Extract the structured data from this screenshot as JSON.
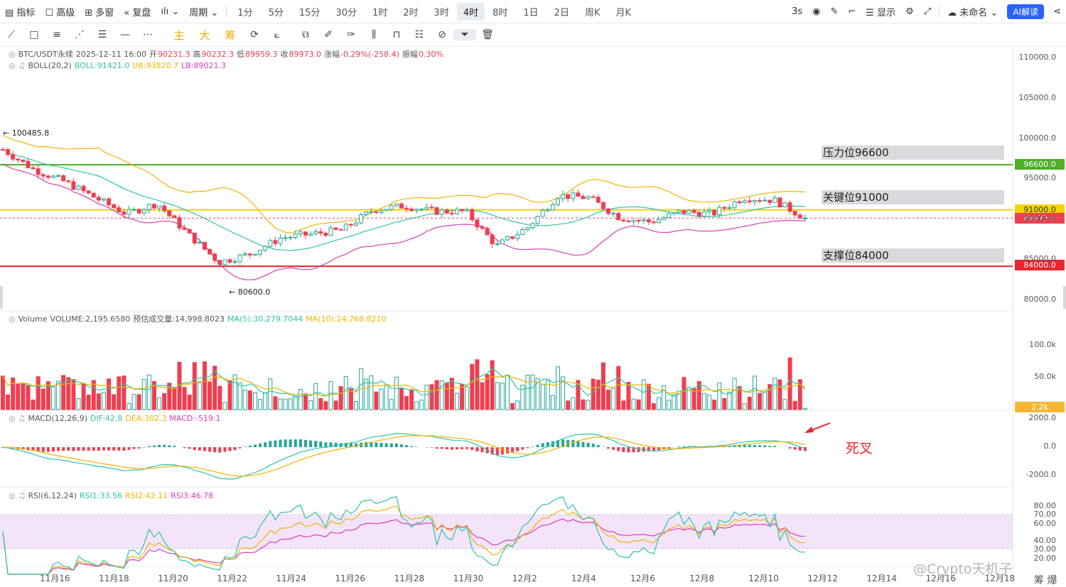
{
  "topbar": {
    "items": [
      {
        "name": "indicator-button",
        "label": "指标"
      },
      {
        "name": "advanced-button",
        "label": "高级"
      },
      {
        "name": "multiwindow-button",
        "label": "多窗"
      },
      {
        "name": "replay-button",
        "label": "复盘"
      },
      {
        "name": "chart-type-button",
        "label": "ılı"
      },
      {
        "name": "period-button",
        "label": "周期"
      }
    ],
    "timeframes": [
      "1分",
      "5分",
      "15分",
      "30分",
      "1时",
      "2时",
      "3时",
      "4时",
      "8时",
      "1日",
      "2日",
      "周K",
      "月K"
    ],
    "active_timeframe": "4时",
    "right": {
      "refresh": "3s",
      "display": "显示",
      "layout_name": "未命名",
      "ai_label": "AI解读"
    }
  },
  "toolbar": {
    "indicators": [
      "主",
      "大",
      "筹"
    ]
  },
  "legend": {
    "symbol": "BTC/USDT永续",
    "time": "2025-12-11 16:00",
    "open_label": "开",
    "open": "90231.3",
    "high_label": "高",
    "high": "90232.3",
    "low_label": "低",
    "low": "89959.3",
    "close_label": "收",
    "close": "89973.0",
    "change_label": "涨幅",
    "change": "-0.29%(-258.4)",
    "amp_label": "振幅",
    "amp": "0.30%",
    "boll_title": "BOLL(20,2)",
    "boll": "BOLL:91421.0",
    "ub": "UB:93820.7",
    "lb": "LB:89021.3",
    "vol_title": "Volume",
    "vol": "VOLUME:2,195.6580",
    "vol_est": "预估成交量:14,998.8023",
    "ma5": "MA(5):30,279.7044",
    "ma10": "MA(10):24,768.8210",
    "macd_title": "MACD(12,26,9)",
    "dif": "DIF:42.8",
    "dea": "DEA:302.3",
    "macd": "MACD:-519.1",
    "rsi_title": "RSI(6,12,24)",
    "rsi1": "RSI1:33.56",
    "rsi2": "RSI2:42.11",
    "rsi3": "RSI3:46.78"
  },
  "annotations": {
    "resistance": "压力位96600",
    "key": "关键位91000",
    "support": "支撑位84000",
    "death_cross": "死叉",
    "high_marker": "← 100485.8",
    "low_marker": "← 80600.0"
  },
  "price_tags": {
    "resistance": "96600.0",
    "key": "91000.0",
    "last": "89973.0",
    "support": "84000.0",
    "volume_last": "2.2k"
  },
  "axes": {
    "price_ticks": [
      "110000.0",
      "105000.0",
      "100000.0",
      "95000.0",
      "90000.0",
      "85000.0",
      "80000.0"
    ],
    "volume_ticks": [
      "100.0k",
      "50.0k"
    ],
    "macd_ticks": [
      "2000.0",
      "0.0",
      "-2000.0"
    ],
    "rsi_ticks": [
      "80.00",
      "70.00",
      "60.00",
      "40.00",
      "30.00",
      "20.00"
    ],
    "x_ticks": [
      "11月16",
      "11月18",
      "11月20",
      "11月22",
      "11月24",
      "11月26",
      "11月28",
      "11月30",
      "12月2",
      "12月4",
      "12月6",
      "12月8",
      "12月10",
      "12月12",
      "12月14",
      "12月16",
      "12月18"
    ]
  },
  "colors": {
    "up": "#26a69a",
    "down": "#ef3e50",
    "boll_mid": "#2ec4a6",
    "boll_ub": "#f0b400",
    "boll_lb": "#d63fb8",
    "resistance": "#4caf27",
    "key": "#f5d400",
    "support": "#e8262e",
    "rsi_band": "#f3e4fa"
  },
  "watermark": "@Crypto天机子",
  "corner_text": "筹 爆",
  "chart_data": {
    "type": "candlestick",
    "title": "BTC/USDT永续",
    "interval": "4时",
    "x_range": [
      "2025-11-15",
      "2025-12-11"
    ],
    "y_range": [
      79000,
      111000
    ],
    "key_levels": [
      {
        "label": "压力位96600",
        "value": 96600
      },
      {
        "label": "关键位91000",
        "value": 91000
      },
      {
        "label": "支撑位84000",
        "value": 84000
      }
    ],
    "last_price": 89973.0,
    "period_high": 100485.8,
    "period_low": 80600.0,
    "close_path": [
      [
        "11-15",
        98500
      ],
      [
        "11-16",
        96000
      ],
      [
        "11-17",
        94500
      ],
      [
        "11-18",
        92500
      ],
      [
        "11-19",
        90500
      ],
      [
        "11-20",
        91800
      ],
      [
        "11-21",
        88000
      ],
      [
        "11-22",
        84500
      ],
      [
        "11-23",
        85500
      ],
      [
        "11-24",
        87500
      ],
      [
        "11-25",
        88000
      ],
      [
        "11-26",
        88500
      ],
      [
        "11-27",
        91000
      ],
      [
        "11-28",
        91500
      ],
      [
        "11-29",
        90800
      ],
      [
        "11-30",
        90800
      ],
      [
        "12-01",
        86500
      ],
      [
        "12-02",
        88800
      ],
      [
        "12-03",
        92800
      ],
      [
        "12-04",
        92500
      ],
      [
        "12-05",
        90000
      ],
      [
        "12-06",
        89500
      ],
      [
        "12-07",
        90800
      ],
      [
        "12-08",
        90500
      ],
      [
        "12-09",
        92500
      ],
      [
        "12-10",
        92200
      ],
      [
        "12-11",
        89973
      ]
    ]
  }
}
